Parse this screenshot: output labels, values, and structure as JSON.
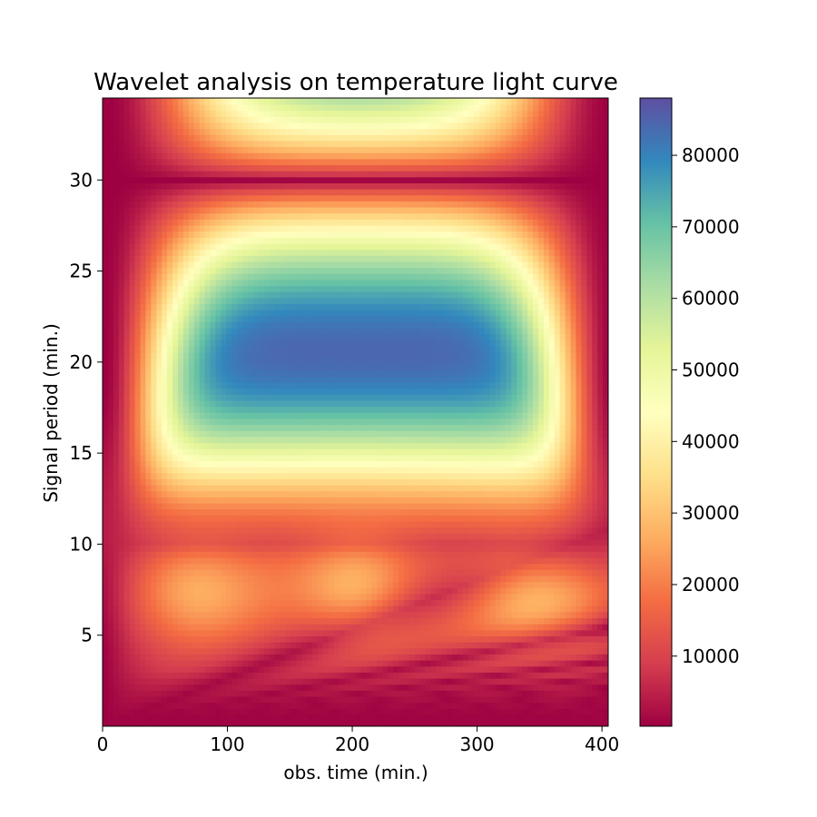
{
  "chart_data": {
    "type": "heatmap",
    "title": "Wavelet analysis on temperature light curve",
    "xlabel": "obs. time (min.)",
    "ylabel": "Signal period (min.)",
    "xlim": [
      0,
      405
    ],
    "ylim": [
      0,
      34.5
    ],
    "xticks": [
      0,
      100,
      200,
      300,
      400
    ],
    "yticks": [
      5,
      10,
      15,
      20,
      25,
      30
    ],
    "colorbar": {
      "colormap": "Spectral",
      "range": [
        200,
        88000
      ],
      "ticks": [
        10000,
        20000,
        30000,
        40000,
        50000,
        60000,
        70000,
        80000
      ]
    },
    "colormap_stops": [
      "#9e0142",
      "#d53e4f",
      "#f46d43",
      "#fdae61",
      "#fee08b",
      "#ffffbf",
      "#e6f598",
      "#abdda4",
      "#66c2a5",
      "#3288bd",
      "#5e4fa2"
    ],
    "grid": false,
    "legend": "colorbar-right",
    "features": {
      "peak_power_region": {
        "time_center": 205,
        "period_range": [
          20,
          34.5
        ],
        "value": 85000
      },
      "secondary_peaks": [
        {
          "time": 70,
          "period": 7.5,
          "value": 27000
        },
        {
          "time": 205,
          "period": 7.5,
          "value": 28000
        },
        {
          "time": 340,
          "period": 7.5,
          "value": 27000
        }
      ]
    }
  }
}
